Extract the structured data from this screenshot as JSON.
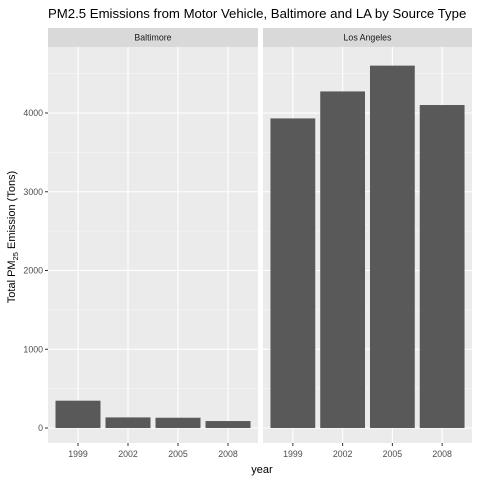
{
  "chart_data": {
    "type": "bar",
    "title": "PM2.5 Emissions from Motor Vehicle, Baltimore and LA by Source Type",
    "xlabel": "year",
    "ylabel": {
      "prefix": "Total PM",
      "subscript": "25",
      "suffix": " Emission (Tons)"
    },
    "ylim": [
      0,
      4800
    ],
    "yticks": [
      0,
      1000,
      2000,
      3000,
      4000
    ],
    "grid": true,
    "facets": [
      {
        "label": "Baltimore",
        "categories": [
          "1999",
          "2002",
          "2005",
          "2008"
        ],
        "values": [
          346.8,
          134.3,
          130.4,
          88.3
        ]
      },
      {
        "label": "Los Angeles",
        "categories": [
          "1999",
          "2002",
          "2005",
          "2008"
        ],
        "values": [
          3931.1,
          4274.0,
          4601.4,
          4101.3
        ]
      }
    ]
  },
  "colors": {
    "panel_background": "#ebebeb",
    "strip_background": "#d9d9d9",
    "grid_major": "#ffffff",
    "bar_fill": "#595959",
    "tick_text": "#4d4d4d"
  }
}
